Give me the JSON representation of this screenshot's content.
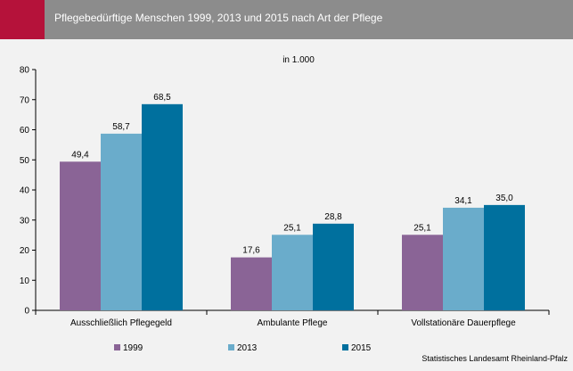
{
  "header": {
    "title": "Pflegebedürftige Menschen 1999, 2013 und 2015 nach Art der Pflege"
  },
  "source": "Statistisches Landesamt Rheinland-Pfalz",
  "chart_data": {
    "type": "bar",
    "title": "Pflegebedürftige Menschen 1999, 2013 und 2015 nach Art der Pflege",
    "unit": "in 1.000",
    "categories": [
      "Ausschließlich Pflegegeld",
      "Ambulante Pflege",
      "Vollstationäre Dauerpflege"
    ],
    "series": [
      {
        "name": "1999",
        "color": "#8a6496",
        "values": [
          49.4,
          17.6,
          25.1
        ],
        "labels": [
          "49,4",
          "17,6",
          "25,1"
        ]
      },
      {
        "name": "2013",
        "color": "#6aaccb",
        "values": [
          58.7,
          25.1,
          34.1
        ],
        "labels": [
          "58,7",
          "25,1",
          "34,1"
        ]
      },
      {
        "name": "2015",
        "color": "#00709e",
        "values": [
          68.5,
          28.8,
          35.0
        ],
        "labels": [
          "68,5",
          "28,8",
          "35,0"
        ]
      }
    ],
    "ylim": [
      0,
      80
    ],
    "yticks": [
      0,
      10,
      20,
      30,
      40,
      50,
      60,
      70,
      80
    ],
    "grid": false,
    "legend": "bottom"
  }
}
